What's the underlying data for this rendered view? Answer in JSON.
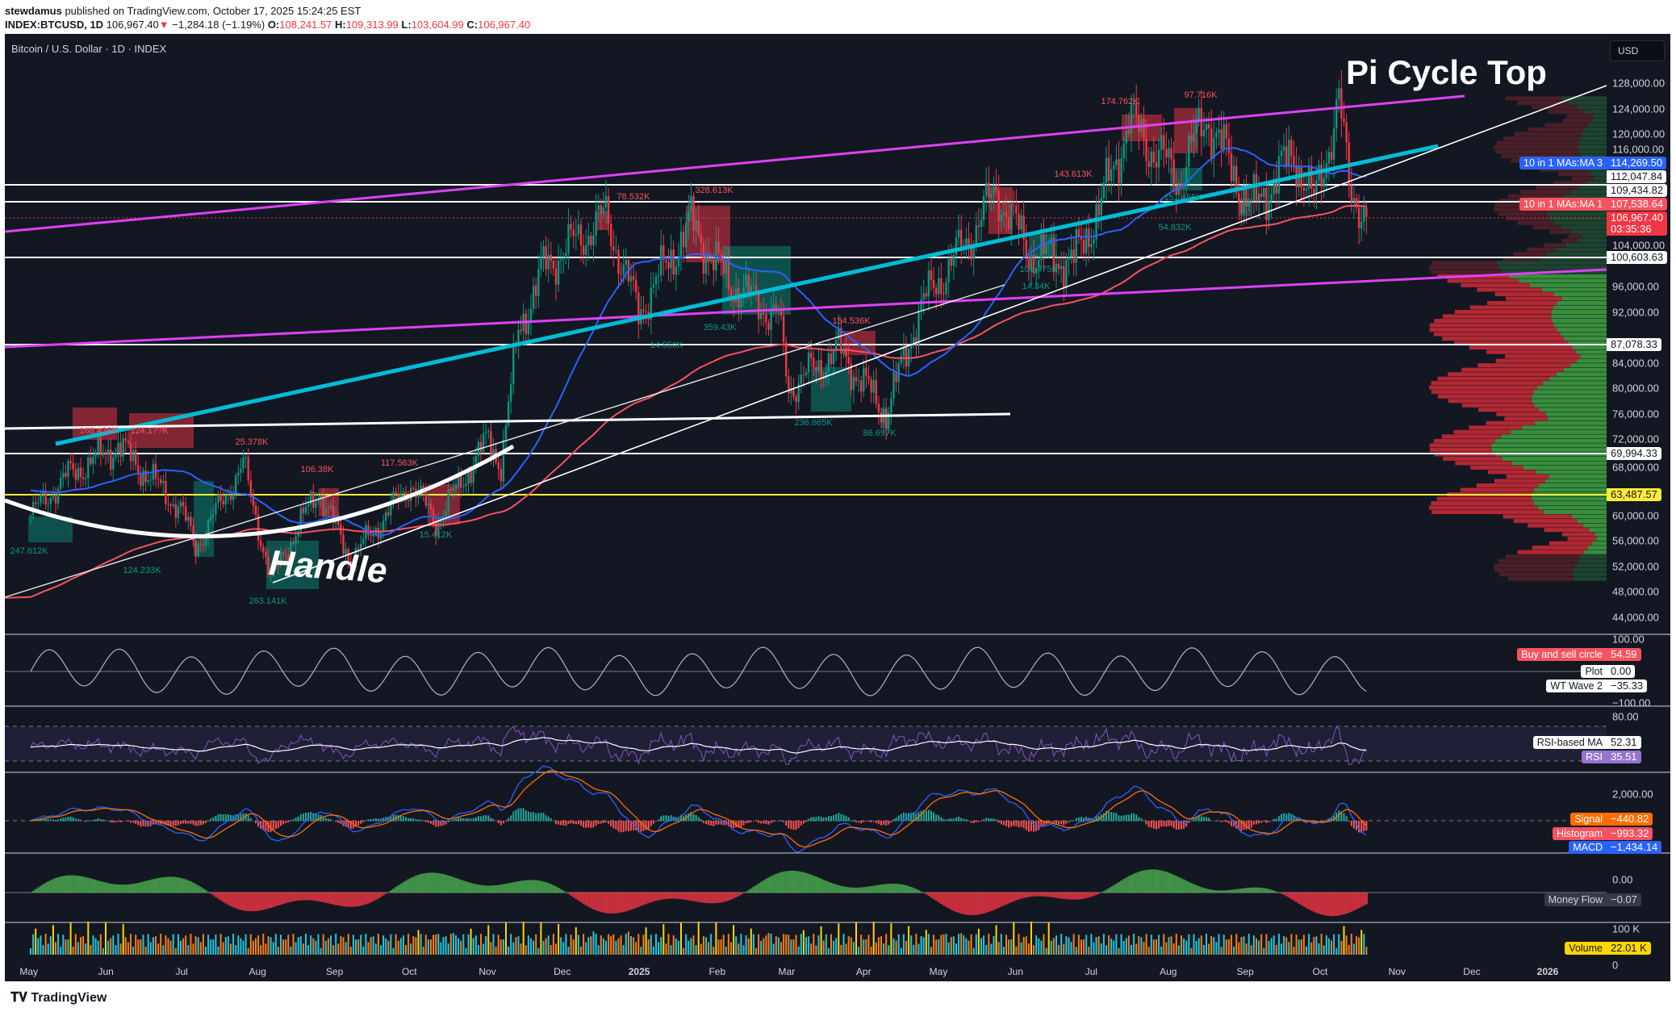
{
  "header": {
    "publisher": "stewdamus",
    "published_text": "published on TradingView.com, October 17, 2025 15:24:25 EST",
    "symbol": "INDEX:BTCUSD, 1D",
    "last": "106,967.40",
    "change": "−1,284.18 (−1.19%)",
    "o_label": "O:",
    "o": "108,241.57",
    "h_label": "H:",
    "h": "109,313.99",
    "l_label": "L:",
    "l": "103,604.99",
    "c_label": "C:",
    "c": "106,967.40"
  },
  "chart_title": "Bitcoin / U.S. Dollar · 1D · INDEX",
  "currency": "USD",
  "price_axis": [
    "128,000.00",
    "124,000.00",
    "120,000.00",
    "116,000.00",
    "104,000.00",
    "96,000.00",
    "92,000.00",
    "84,000.00",
    "80,000.00",
    "76,000.00",
    "72,000.00",
    "68,000.00",
    "60,000.00",
    "56,000.00",
    "52,000.00",
    "48,000.00",
    "44,000.00"
  ],
  "levels": {
    "ma3_name": "10 in 1 MAs:MA 3",
    "ma3": "114,269.50",
    "l1": "112,047.84",
    "l2": "109,434.82",
    "ma1_name": "10 in 1 MAs:MA 1",
    "ma1": "107,538.64",
    "last": "106,967.40",
    "countdown": "03:35:36",
    "l3": "100,603.63",
    "l4": "87,078.33",
    "l5": "69,994.33",
    "l6": "63,487.57"
  },
  "indicators": {
    "wt": {
      "top": "100.00",
      "bottom": "−100.00",
      "bsc_name": "Buy and sell circle",
      "bsc": "54.59",
      "plot_name": "Plot",
      "plot": "0.00",
      "wt2_name": "WT Wave 2",
      "wt2": "−35.33"
    },
    "rsi": {
      "top": "80.00",
      "ma_name": "RSI-based MA",
      "ma": "52.31",
      "rsi_name": "RSI",
      "rsi": "35.51"
    },
    "macd": {
      "top": "2,000.00",
      "signal_name": "Signal",
      "signal": "−440.82",
      "hist_name": "Histogram",
      "hist": "−993.32",
      "macd_name": "MACD",
      "macd": "−1,434.14"
    },
    "mf": {
      "zero": "0.00",
      "name": "Money Flow",
      "value": "−0.07"
    },
    "vol": {
      "top": "100 K",
      "zero": "0",
      "name": "Volume",
      "value": "22.01 K"
    }
  },
  "time_axis": [
    "May",
    "Jun",
    "Jul",
    "Aug",
    "Sep",
    "Oct",
    "Nov",
    "Dec",
    "2025",
    "Feb",
    "Mar",
    "Apr",
    "May",
    "Jun",
    "Jul",
    "Aug",
    "Sep",
    "Oct",
    "Nov",
    "Dec",
    "2026"
  ],
  "annotations": {
    "pi": "Pi Cycle Top",
    "handle": "Handle",
    "red": [
      "168.436K",
      "124.1??K",
      "25.378K",
      "106.38K",
      "117.563K",
      "78.532K",
      "328.613K",
      "154.536K",
      "143.613K",
      "174.762K",
      "97.716K"
    ],
    "green": [
      "247.612K",
      "124.233K",
      "263.141K",
      "15.412K",
      "359.43K",
      "14.550K",
      "236.665K",
      "86.697K",
      "101.475K",
      "151.455K",
      "54.832K",
      "14.34K"
    ]
  },
  "branding": "TradingView",
  "colors": {
    "bg": "#131722",
    "up": "#089981",
    "down": "#f23645",
    "ma_fast": "#2962ff",
    "ma_slow": "#f7525f",
    "pitop": "#e040fb",
    "trend": "#00bcd4",
    "level_yellow": "#ffeb3b"
  },
  "chart_data": {
    "type": "candlestick",
    "title": "Bitcoin / U.S. Dollar · 1D · INDEX",
    "ylim": [
      44000,
      128000
    ],
    "x_start": "2024-05-01",
    "x_unit": "day",
    "anchors": [
      [
        0,
        60000
      ],
      [
        14,
        66000
      ],
      [
        35,
        71000
      ],
      [
        60,
        61000
      ],
      [
        66,
        55000
      ],
      [
        85,
        68000
      ],
      [
        96,
        50000
      ],
      [
        115,
        64000
      ],
      [
        128,
        53000
      ],
      [
        152,
        65000
      ],
      [
        162,
        59000
      ],
      [
        183,
        72000
      ],
      [
        188,
        68000
      ],
      [
        195,
        89000
      ],
      [
        205,
        99000
      ],
      [
        230,
        107000
      ],
      [
        243,
        92000
      ],
      [
        264,
        106000
      ],
      [
        278,
        97000
      ],
      [
        299,
        91000
      ],
      [
        303,
        80000
      ],
      [
        323,
        86000
      ],
      [
        342,
        76000
      ],
      [
        356,
        93000
      ],
      [
        374,
        103000
      ],
      [
        386,
        111000
      ],
      [
        400,
        101000
      ],
      [
        417,
        100000
      ],
      [
        428,
        109000
      ],
      [
        439,
        122000
      ],
      [
        459,
        113000
      ],
      [
        470,
        123000
      ],
      [
        488,
        108000
      ],
      [
        505,
        117000
      ],
      [
        513,
        109000
      ],
      [
        523,
        125000
      ],
      [
        527,
        112000
      ],
      [
        534,
        106967.4
      ]
    ],
    "last_close": 106967.4
  }
}
